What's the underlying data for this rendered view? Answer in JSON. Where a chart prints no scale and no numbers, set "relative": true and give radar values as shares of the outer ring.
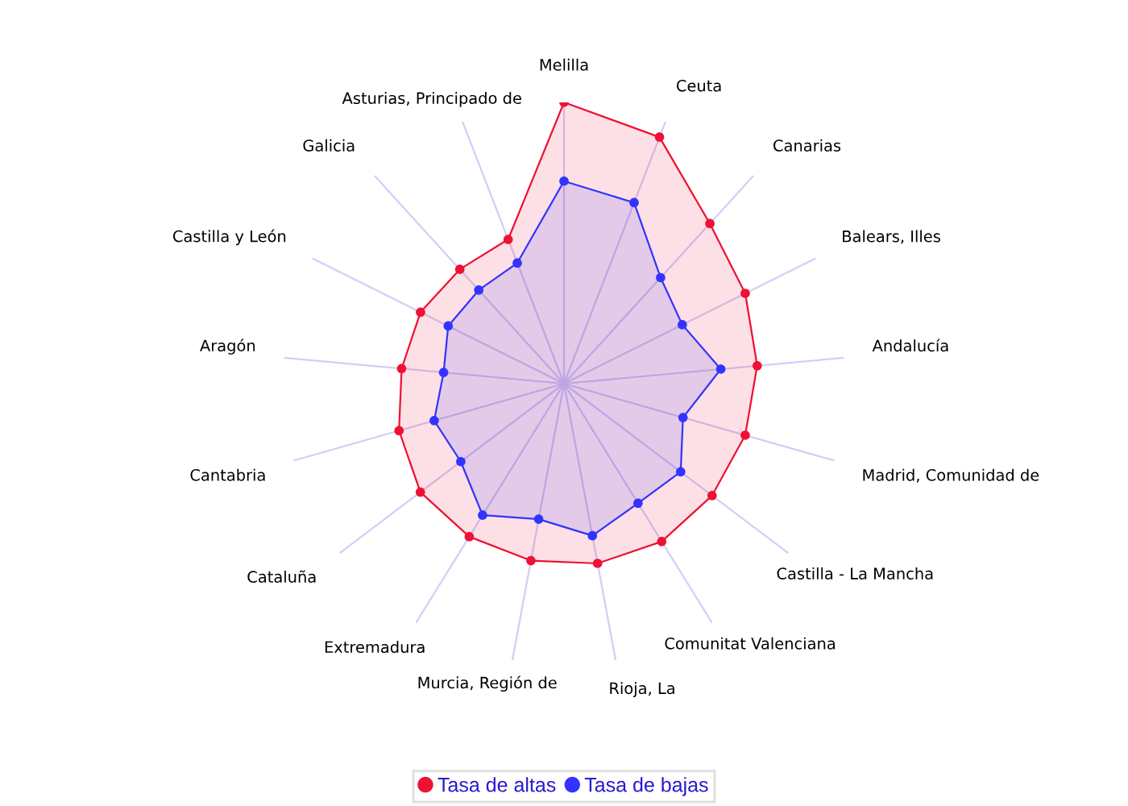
{
  "chart_data": {
    "type": "radar",
    "relative": true,
    "legend": "bottom",
    "marker": "circle",
    "line_style": "solid",
    "categories": [
      "Melilla",
      "Ceuta",
      "Canarias",
      "Balears, Illes",
      "Andalucía",
      "Madrid, Comunidad de",
      "Castilla - La Mancha",
      "Comunitat Valenciana",
      "Rioja, La",
      "Murcia, Región de",
      "Extremadura",
      "Cataluña",
      "Cantabria",
      "Aragón",
      "Castilla y León",
      "Galicia",
      "Asturias, Principado de"
    ],
    "series": [
      {
        "name": "Tasa de altas",
        "color": "#ee1133",
        "values": [
          1.0,
          0.94,
          0.77,
          0.72,
          0.69,
          0.67,
          0.66,
          0.66,
          0.65,
          0.64,
          0.64,
          0.64,
          0.61,
          0.58,
          0.57,
          0.55,
          0.55
        ]
      },
      {
        "name": "Tasa de bajas",
        "color": "#3333ff",
        "values": [
          0.72,
          0.69,
          0.51,
          0.47,
          0.56,
          0.44,
          0.52,
          0.5,
          0.55,
          0.49,
          0.55,
          0.46,
          0.48,
          0.43,
          0.46,
          0.45,
          0.46
        ]
      }
    ]
  }
}
